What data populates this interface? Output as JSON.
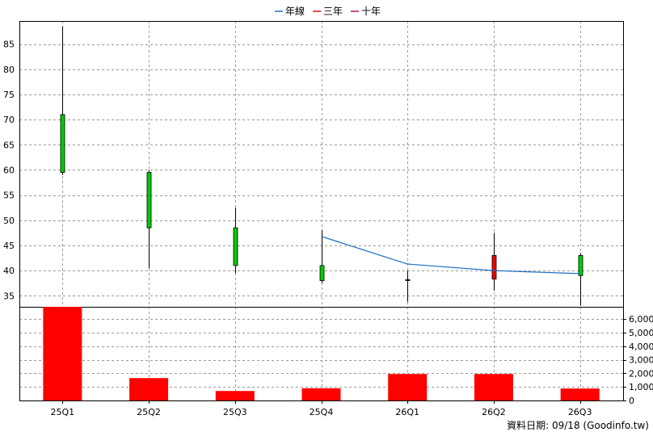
{
  "chart_data": [
    {
      "type": "candlestick",
      "categories": [
        "25Q1",
        "25Q2",
        "25Q3",
        "25Q4",
        "26Q1",
        "26Q2",
        "26Q3"
      ],
      "ohlc": [
        {
          "open": 59.5,
          "high": 88.5,
          "low": 59.0,
          "close": 71.0
        },
        {
          "open": 48.5,
          "high": 60.0,
          "low": 40.5,
          "close": 59.5
        },
        {
          "open": 41.0,
          "high": 52.5,
          "low": 39.5,
          "close": 48.5
        },
        {
          "open": 38.0,
          "high": 48.0,
          "low": 37.5,
          "close": 41.0
        },
        {
          "open": 38.2,
          "high": 40.0,
          "low": 33.8,
          "close": 38.0
        },
        {
          "open": 43.0,
          "high": 47.5,
          "low": 36.0,
          "close": 38.3
        },
        {
          "open": 39.0,
          "high": 43.5,
          "low": 33.0,
          "close": 43.0
        }
      ],
      "overlay_lines": [
        {
          "name": "年線",
          "color": "#1f6fc5",
          "points": [
            {
              "x": "25Q4",
              "y": 46.8
            },
            {
              "x": "26Q1",
              "y": 41.3
            },
            {
              "x": "26Q2",
              "y": 40.0
            },
            {
              "x": "26Q3",
              "y": 39.4
            }
          ]
        }
      ],
      "y_ticks": [
        35,
        40,
        45,
        50,
        55,
        60,
        65,
        70,
        75,
        80,
        85
      ],
      "ylim": [
        32.8,
        89.6
      ],
      "legend": [
        {
          "name": "年線",
          "color": "#1f6fc5"
        },
        {
          "name": "三年",
          "color": "#e01010"
        },
        {
          "name": "十年",
          "color": "#b01060"
        }
      ],
      "legend_position": "top-center",
      "grid": true,
      "up_color": "#00cc00",
      "down_color": "#ee0000"
    },
    {
      "type": "bar",
      "categories": [
        "25Q1",
        "25Q2",
        "25Q3",
        "25Q4",
        "26Q1",
        "26Q2",
        "26Q3"
      ],
      "values": [
        6900,
        1650,
        700,
        900,
        1950,
        1950,
        880
      ],
      "y_ticks": [
        0,
        1000,
        2000,
        3000,
        4000,
        5000,
        6000
      ],
      "y_tick_labels": [
        "0",
        "1,000",
        "2,000",
        "3,000",
        "4,000",
        "5,000",
        "6,000"
      ],
      "ylim": [
        0,
        6900
      ],
      "color": "#ff0000",
      "grid": true
    }
  ],
  "footer": {
    "label": "資料日期: 09/18",
    "source": "(Goodinfo.tw)"
  }
}
